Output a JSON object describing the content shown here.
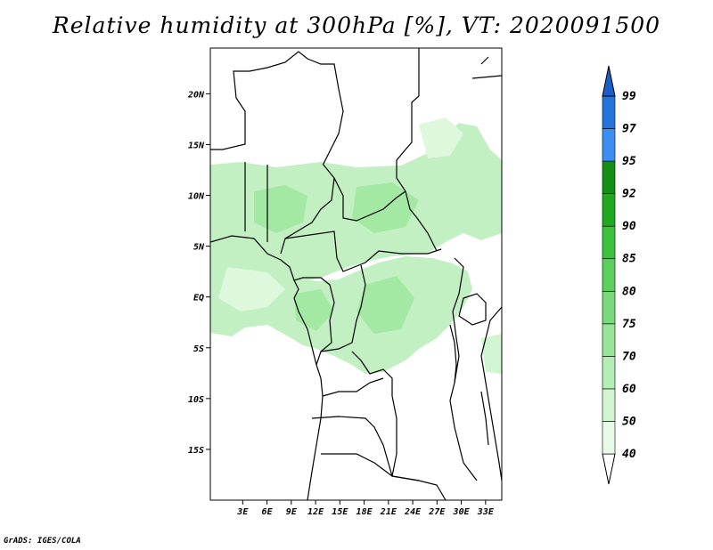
{
  "title": "Relative humidity at 300hPa [%], VT: 2020091500",
  "credit": "GrADS: IGES/COLA",
  "map": {
    "lon_range": [
      -1,
      35
    ],
    "lat_range": [
      -20,
      24.5
    ],
    "lat_ticks": [
      {
        "value": 20,
        "label": "20N"
      },
      {
        "value": 15,
        "label": "15N"
      },
      {
        "value": 10,
        "label": "10N"
      },
      {
        "value": 5,
        "label": "5N"
      },
      {
        "value": 0,
        "label": "EQ"
      },
      {
        "value": -5,
        "label": "5S"
      },
      {
        "value": -10,
        "label": "10S"
      },
      {
        "value": -15,
        "label": "15S"
      }
    ],
    "lon_ticks": [
      {
        "value": 3,
        "label": "3E"
      },
      {
        "value": 6,
        "label": "6E"
      },
      {
        "value": 9,
        "label": "9E"
      },
      {
        "value": 12,
        "label": "12E"
      },
      {
        "value": 15,
        "label": "15E"
      },
      {
        "value": 18,
        "label": "18E"
      },
      {
        "value": 21,
        "label": "21E"
      },
      {
        "value": 24,
        "label": "24E"
      },
      {
        "value": 27,
        "label": "27E"
      },
      {
        "value": 30,
        "label": "30E"
      },
      {
        "value": 33,
        "label": "33E"
      }
    ]
  },
  "colorbar": {
    "levels": [
      "40",
      "50",
      "60",
      "70",
      "75",
      "80",
      "85",
      "90",
      "92",
      "95",
      "97",
      "99"
    ],
    "colors": [
      "#e8fae8",
      "#d0f5d0",
      "#b4eeb4",
      "#98e498",
      "#7ad97a",
      "#5ccf5c",
      "#3cc23c",
      "#20a820",
      "#139013",
      "#3c8ef0",
      "#2574dc",
      "#1a5ec8"
    ],
    "below_color": "#ffffff",
    "above_color": "#1a5ec8"
  }
}
